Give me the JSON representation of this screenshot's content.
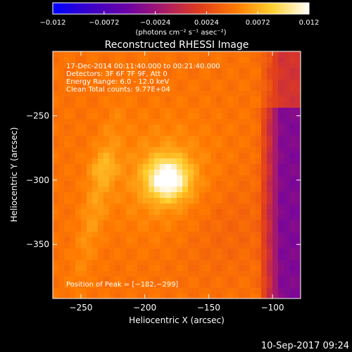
{
  "colorbar": {
    "ticks": [
      {
        "value": -0.012,
        "label": "−0.012"
      },
      {
        "value": -0.0072,
        "label": "−0.0072"
      },
      {
        "value": -0.0024,
        "label": "−0.0024"
      },
      {
        "value": 0.0024,
        "label": "0.0024"
      },
      {
        "value": 0.0072,
        "label": "0.0072"
      },
      {
        "value": 0.012,
        "label": "0.012"
      }
    ],
    "range": [
      -0.012,
      0.012
    ],
    "units_label": "(photons cm⁻² s⁻¹ asec⁻²)",
    "colors": [
      "#0000ff",
      "#3a00c8",
      "#6a00a8",
      "#a81a6a",
      "#e03c1e",
      "#ff7a00",
      "#ffd030",
      "#ffffff"
    ]
  },
  "chart_data": {
    "type": "heatmap",
    "title": "Reconstructed RHESSI Image",
    "xlabel": "Heliocentric X (arcsec)",
    "ylabel": "Heliocentric Y (arcsec)",
    "xlim": [
      -272,
      -78
    ],
    "ylim": [
      -392,
      -200
    ],
    "x_ticks": [
      {
        "value": -250,
        "label": "−250"
      },
      {
        "value": -200,
        "label": "−200"
      },
      {
        "value": -150,
        "label": "−150"
      },
      {
        "value": -100,
        "label": "−100"
      }
    ],
    "y_ticks": [
      {
        "value": -250,
        "label": "−250"
      },
      {
        "value": -300,
        "label": "−300"
      },
      {
        "value": -350,
        "label": "−350"
      }
    ],
    "sources": [
      {
        "x": -182,
        "y": -299,
        "peak": 0.012
      },
      {
        "x": -232,
        "y": -290,
        "peak": 0.0068
      }
    ],
    "annotations": [
      "17-Dec-2014 00:11:40.000 to 00:21:40.000",
      "Detectors: 3F 6F 7F 9F, Att 0",
      "Energy Range: 6.0 - 12.0 keV",
      "Clean    Total counts: 9.77E+04"
    ],
    "peak_label": "Position of Peak = [−182,−299]",
    "grid": false
  },
  "footer": {
    "timestamp": "10-Sep-2017 09:24"
  }
}
